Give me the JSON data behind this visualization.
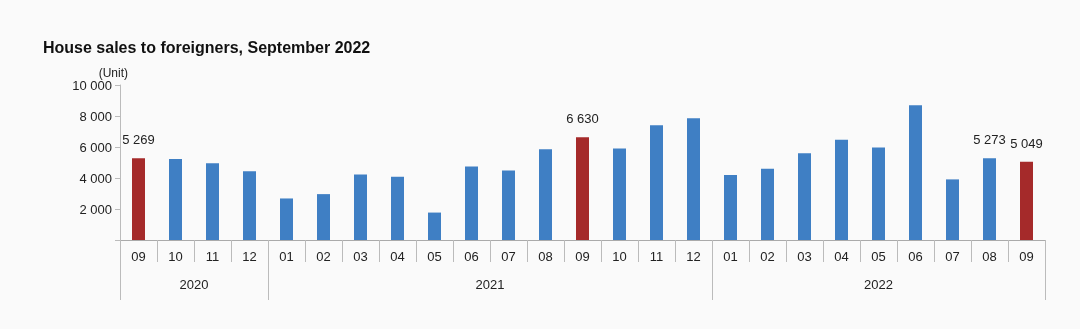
{
  "chart_data": {
    "type": "bar",
    "title": "House sales to foreigners, September 2022",
    "ylabel": "(Unit)",
    "categories": [
      "09",
      "10",
      "11",
      "12",
      "01",
      "02",
      "03",
      "04",
      "05",
      "06",
      "07",
      "08",
      "09",
      "10",
      "11",
      "12",
      "01",
      "02",
      "03",
      "04",
      "05",
      "06",
      "07",
      "08",
      "09"
    ],
    "values": [
      5269,
      5220,
      4950,
      4430,
      2680,
      2960,
      4230,
      4080,
      1770,
      4750,
      4490,
      5850,
      6630,
      5900,
      7400,
      7850,
      4190,
      4590,
      5590,
      6470,
      5970,
      8690,
      3910,
      5273,
      5049
    ],
    "colors": [
      "#a52a2a",
      "#3f7fc4",
      "#3f7fc4",
      "#3f7fc4",
      "#3f7fc4",
      "#3f7fc4",
      "#3f7fc4",
      "#3f7fc4",
      "#3f7fc4",
      "#3f7fc4",
      "#3f7fc4",
      "#3f7fc4",
      "#a52a2a",
      "#3f7fc4",
      "#3f7fc4",
      "#3f7fc4",
      "#3f7fc4",
      "#3f7fc4",
      "#3f7fc4",
      "#3f7fc4",
      "#3f7fc4",
      "#3f7fc4",
      "#3f7fc4",
      "#3f7fc4",
      "#a52a2a"
    ],
    "value_labels": [
      "5 269",
      null,
      null,
      null,
      null,
      null,
      null,
      null,
      null,
      null,
      null,
      null,
      "6 630",
      null,
      null,
      null,
      null,
      null,
      null,
      null,
      null,
      null,
      null,
      "5 273",
      "5 049"
    ],
    "annotations": [
      "2020",
      "2021",
      "2022"
    ],
    "ylim": [
      0,
      10000
    ],
    "yticks": [
      {
        "value": 0,
        "label": null
      },
      {
        "value": 2000,
        "label": "2 000"
      },
      {
        "value": 4000,
        "label": "4 000"
      },
      {
        "value": 6000,
        "label": "6 000"
      },
      {
        "value": 8000,
        "label": "8 000"
      },
      {
        "value": 10000,
        "label": "10 000"
      }
    ],
    "grid": false
  }
}
